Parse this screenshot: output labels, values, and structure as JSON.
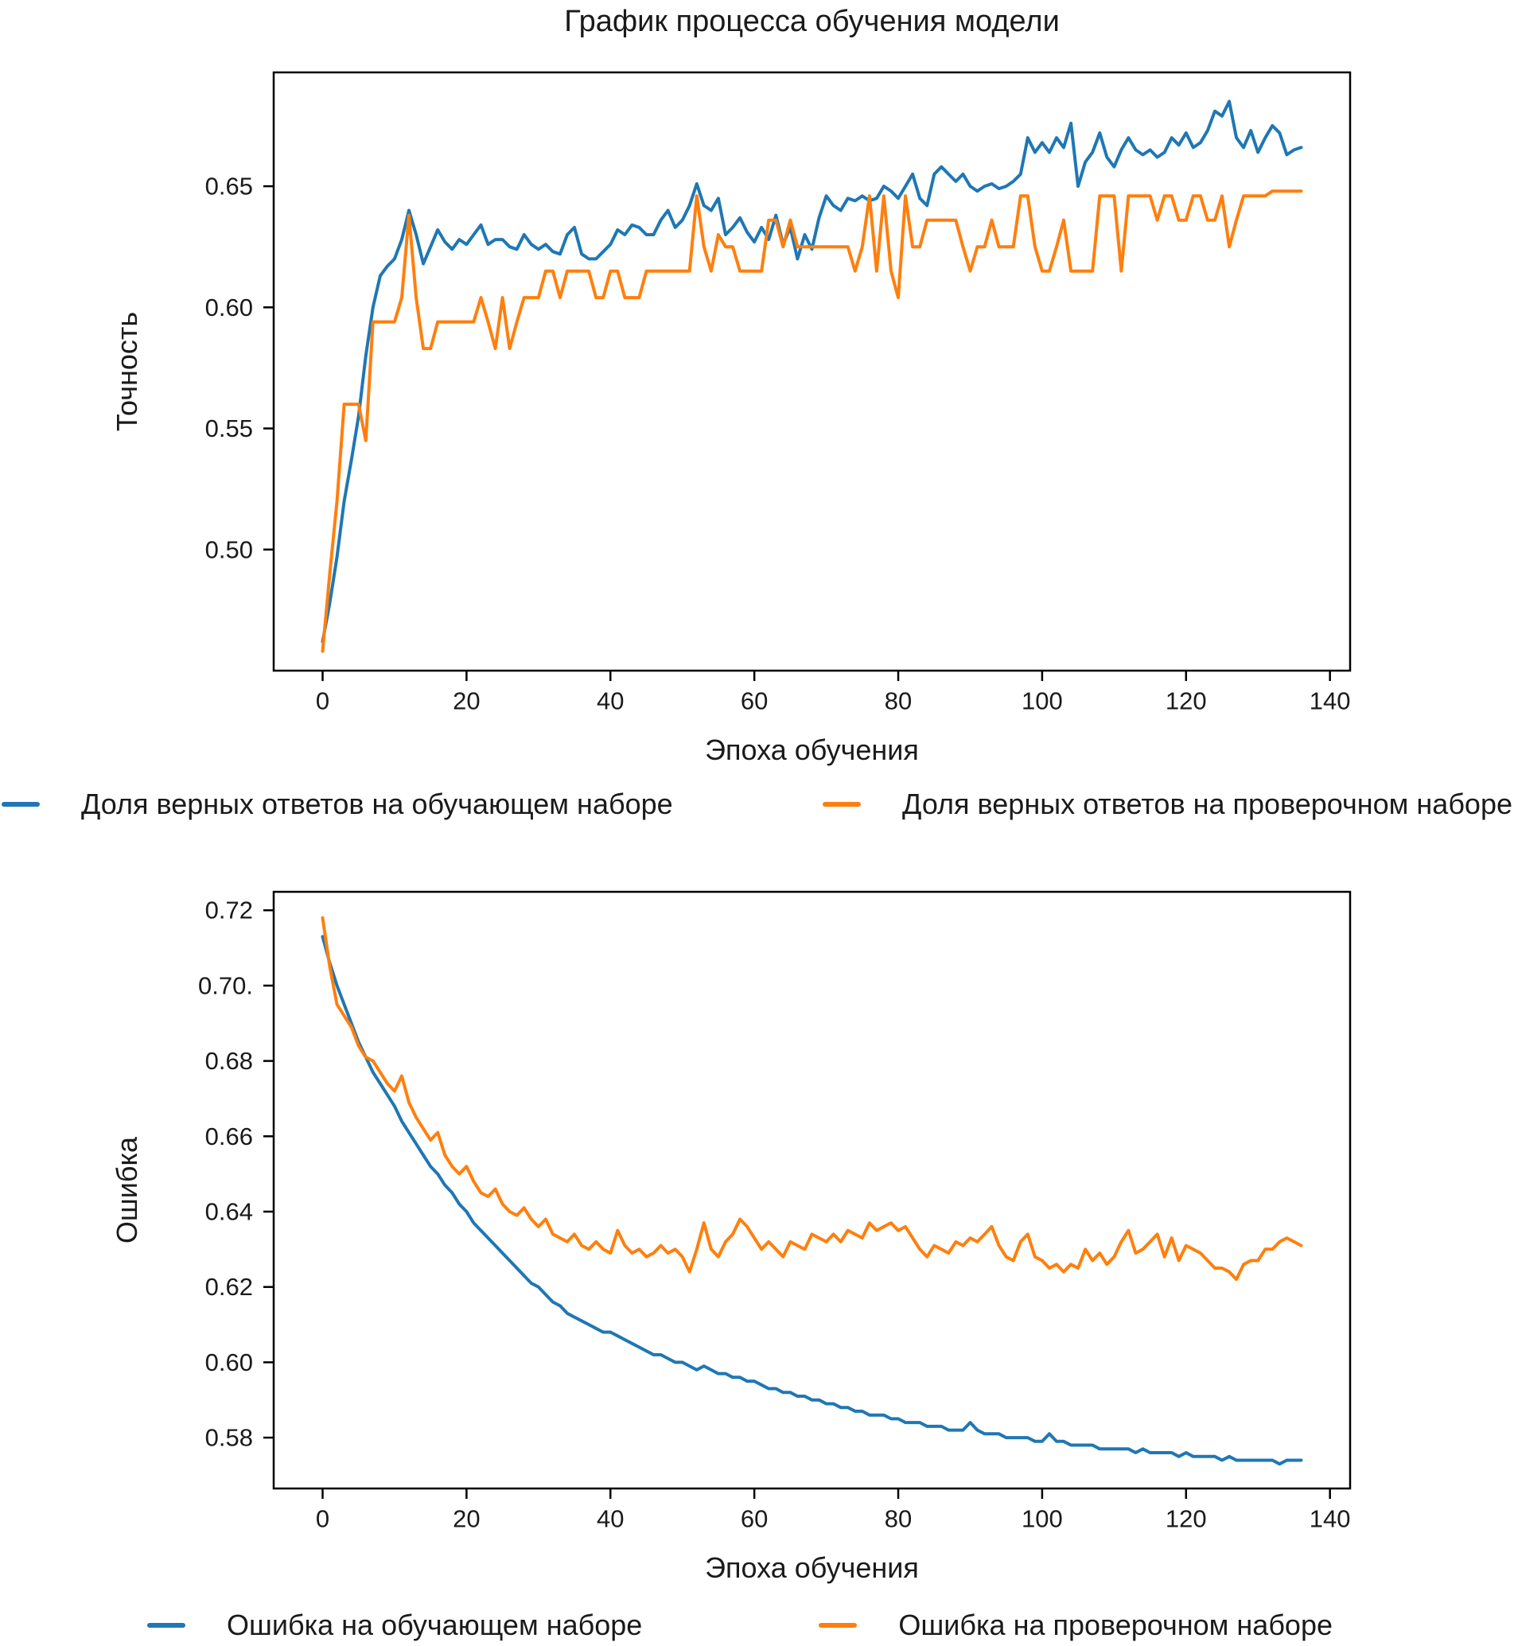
{
  "title": "График процесса обучения модели",
  "colors": {
    "train": "#1f77b4",
    "val": "#ff7f0e",
    "axis": "#000000",
    "text": "#1a1a1a"
  },
  "chart_data": [
    {
      "type": "line",
      "key": "accuracy",
      "title": "",
      "xlabel": "Эпоха обучения",
      "ylabel": "Точность",
      "x_range": [
        0,
        136
      ],
      "x_description": "training epoch, one point per epoch 0..136",
      "xlim": [
        -6.8,
        142.8
      ],
      "ylim": [
        0.45,
        0.697
      ],
      "xticks": [
        0,
        20,
        40,
        60,
        80,
        100,
        120,
        140
      ],
      "yticks": [
        0.5,
        0.55,
        0.6,
        0.65
      ],
      "ytick_labels": [
        "0.50",
        "0.55",
        "0.60",
        "0.65"
      ],
      "grid": false,
      "legend_position": "below-axes, one row",
      "series": [
        {
          "key": "train-accuracy",
          "name": "Доля верных ответов на обучающем наборе",
          "color": "#1f77b4",
          "values": [
            0.462,
            0.478,
            0.497,
            0.52,
            0.537,
            0.555,
            0.58,
            0.6,
            0.613,
            0.617,
            0.62,
            0.628,
            0.64,
            0.63,
            0.618,
            0.625,
            0.632,
            0.627,
            0.624,
            0.628,
            0.626,
            0.63,
            0.634,
            0.626,
            0.628,
            0.628,
            0.625,
            0.624,
            0.63,
            0.626,
            0.624,
            0.626,
            0.623,
            0.622,
            0.63,
            0.633,
            0.622,
            0.62,
            0.62,
            0.623,
            0.626,
            0.632,
            0.63,
            0.634,
            0.633,
            0.63,
            0.63,
            0.636,
            0.64,
            0.633,
            0.636,
            0.642,
            0.651,
            0.642,
            0.64,
            0.645,
            0.63,
            0.633,
            0.637,
            0.631,
            0.627,
            0.633,
            0.628,
            0.638,
            0.626,
            0.633,
            0.62,
            0.63,
            0.624,
            0.637,
            0.646,
            0.642,
            0.64,
            0.645,
            0.644,
            0.646,
            0.644,
            0.645,
            0.65,
            0.648,
            0.645,
            0.65,
            0.655,
            0.645,
            0.642,
            0.655,
            0.658,
            0.655,
            0.652,
            0.655,
            0.65,
            0.648,
            0.65,
            0.651,
            0.649,
            0.65,
            0.652,
            0.655,
            0.67,
            0.664,
            0.668,
            0.664,
            0.67,
            0.666,
            0.676,
            0.65,
            0.66,
            0.664,
            0.672,
            0.662,
            0.658,
            0.665,
            0.67,
            0.665,
            0.663,
            0.665,
            0.662,
            0.664,
            0.67,
            0.667,
            0.672,
            0.666,
            0.668,
            0.673,
            0.681,
            0.679,
            0.685,
            0.67,
            0.666,
            0.673,
            0.664,
            0.67,
            0.675,
            0.672,
            0.663,
            0.665,
            0.666
          ]
        },
        {
          "key": "val-accuracy",
          "name": "Доля верных ответов на проверочном наборе",
          "color": "#ff7f0e",
          "values": [
            0.458,
            0.49,
            0.52,
            0.56,
            0.56,
            0.56,
            0.545,
            0.594,
            0.594,
            0.594,
            0.594,
            0.604,
            0.638,
            0.604,
            0.583,
            0.583,
            0.594,
            0.594,
            0.594,
            0.594,
            0.594,
            0.594,
            0.604,
            0.594,
            0.583,
            0.604,
            0.583,
            0.594,
            0.604,
            0.604,
            0.604,
            0.615,
            0.615,
            0.604,
            0.615,
            0.615,
            0.615,
            0.615,
            0.604,
            0.604,
            0.615,
            0.615,
            0.604,
            0.604,
            0.604,
            0.615,
            0.615,
            0.615,
            0.615,
            0.615,
            0.615,
            0.615,
            0.646,
            0.625,
            0.615,
            0.63,
            0.625,
            0.625,
            0.615,
            0.615,
            0.615,
            0.615,
            0.636,
            0.636,
            0.625,
            0.636,
            0.625,
            0.625,
            0.625,
            0.625,
            0.625,
            0.625,
            0.625,
            0.625,
            0.615,
            0.625,
            0.646,
            0.615,
            0.646,
            0.615,
            0.604,
            0.646,
            0.625,
            0.625,
            0.636,
            0.636,
            0.636,
            0.636,
            0.636,
            0.625,
            0.615,
            0.625,
            0.625,
            0.636,
            0.625,
            0.625,
            0.625,
            0.646,
            0.646,
            0.625,
            0.615,
            0.615,
            0.625,
            0.636,
            0.615,
            0.615,
            0.615,
            0.615,
            0.646,
            0.646,
            0.646,
            0.615,
            0.646,
            0.646,
            0.646,
            0.646,
            0.636,
            0.646,
            0.646,
            0.636,
            0.636,
            0.646,
            0.646,
            0.636,
            0.636,
            0.646,
            0.625,
            0.636,
            0.646,
            0.646,
            0.646,
            0.646,
            0.648,
            0.648,
            0.648,
            0.648,
            0.648
          ]
        }
      ]
    },
    {
      "type": "line",
      "key": "loss",
      "title": "",
      "xlabel": "Эпоха обучения",
      "ylabel": "Ошибка",
      "x_range": [
        0,
        136
      ],
      "x_description": "training epoch, one point per epoch 0..136",
      "xlim": [
        -6.8,
        142.8
      ],
      "ylim": [
        0.5665,
        0.7249
      ],
      "xticks": [
        0,
        20,
        40,
        60,
        80,
        100,
        120,
        140
      ],
      "yticks": [
        0.58,
        0.6,
        0.62,
        0.64,
        0.66,
        0.68,
        0.7,
        0.72
      ],
      "ytick_labels": [
        "0.58",
        "0.60",
        "0.62",
        "0.64",
        "0.66",
        "0.68",
        "0.70.",
        "0.72"
      ],
      "grid": false,
      "legend_position": "below-axes, one row, centered",
      "series": [
        {
          "key": "train-loss",
          "name": "Ошибка на обучающем наборе",
          "color": "#1f77b4",
          "values": [
            0.713,
            0.706,
            0.7,
            0.695,
            0.69,
            0.685,
            0.681,
            0.677,
            0.674,
            0.671,
            0.668,
            0.664,
            0.661,
            0.658,
            0.655,
            0.652,
            0.65,
            0.647,
            0.645,
            0.642,
            0.64,
            0.637,
            0.635,
            0.633,
            0.631,
            0.629,
            0.627,
            0.625,
            0.623,
            0.621,
            0.62,
            0.618,
            0.616,
            0.615,
            0.613,
            0.612,
            0.611,
            0.61,
            0.609,
            0.608,
            0.608,
            0.607,
            0.606,
            0.605,
            0.604,
            0.603,
            0.602,
            0.602,
            0.601,
            0.6,
            0.6,
            0.599,
            0.598,
            0.599,
            0.598,
            0.597,
            0.597,
            0.596,
            0.596,
            0.595,
            0.595,
            0.594,
            0.593,
            0.593,
            0.592,
            0.592,
            0.591,
            0.591,
            0.59,
            0.59,
            0.589,
            0.589,
            0.588,
            0.588,
            0.587,
            0.587,
            0.586,
            0.586,
            0.586,
            0.585,
            0.585,
            0.584,
            0.584,
            0.584,
            0.583,
            0.583,
            0.583,
            0.582,
            0.582,
            0.582,
            0.584,
            0.582,
            0.581,
            0.581,
            0.581,
            0.58,
            0.58,
            0.58,
            0.58,
            0.579,
            0.579,
            0.581,
            0.579,
            0.579,
            0.578,
            0.578,
            0.578,
            0.578,
            0.577,
            0.577,
            0.577,
            0.577,
            0.577,
            0.576,
            0.577,
            0.576,
            0.576,
            0.576,
            0.576,
            0.575,
            0.576,
            0.575,
            0.575,
            0.575,
            0.575,
            0.574,
            0.575,
            0.574,
            0.574,
            0.574,
            0.574,
            0.574,
            0.574,
            0.573,
            0.574,
            0.574,
            0.574
          ]
        },
        {
          "key": "val-loss",
          "name": "Ошибка на проверочном наборе",
          "color": "#ff7f0e",
          "values": [
            0.718,
            0.705,
            0.695,
            0.692,
            0.689,
            0.684,
            0.681,
            0.68,
            0.677,
            0.674,
            0.672,
            0.676,
            0.669,
            0.665,
            0.662,
            0.659,
            0.661,
            0.655,
            0.652,
            0.65,
            0.652,
            0.648,
            0.645,
            0.644,
            0.646,
            0.642,
            0.64,
            0.639,
            0.641,
            0.638,
            0.636,
            0.638,
            0.634,
            0.633,
            0.632,
            0.634,
            0.631,
            0.63,
            0.632,
            0.63,
            0.629,
            0.635,
            0.631,
            0.629,
            0.63,
            0.628,
            0.629,
            0.631,
            0.629,
            0.63,
            0.628,
            0.624,
            0.63,
            0.637,
            0.63,
            0.628,
            0.632,
            0.634,
            0.638,
            0.636,
            0.633,
            0.63,
            0.632,
            0.63,
            0.628,
            0.632,
            0.631,
            0.63,
            0.634,
            0.633,
            0.632,
            0.634,
            0.632,
            0.635,
            0.634,
            0.633,
            0.637,
            0.635,
            0.636,
            0.637,
            0.635,
            0.636,
            0.633,
            0.63,
            0.628,
            0.631,
            0.63,
            0.629,
            0.632,
            0.631,
            0.633,
            0.632,
            0.634,
            0.636,
            0.631,
            0.628,
            0.627,
            0.632,
            0.634,
            0.628,
            0.627,
            0.625,
            0.626,
            0.624,
            0.626,
            0.625,
            0.63,
            0.627,
            0.629,
            0.626,
            0.628,
            0.632,
            0.635,
            0.629,
            0.63,
            0.632,
            0.634,
            0.628,
            0.633,
            0.627,
            0.631,
            0.63,
            0.629,
            0.627,
            0.625,
            0.625,
            0.624,
            0.622,
            0.626,
            0.627,
            0.627,
            0.63,
            0.63,
            0.632,
            0.633,
            0.632,
            0.631
          ]
        }
      ]
    }
  ]
}
